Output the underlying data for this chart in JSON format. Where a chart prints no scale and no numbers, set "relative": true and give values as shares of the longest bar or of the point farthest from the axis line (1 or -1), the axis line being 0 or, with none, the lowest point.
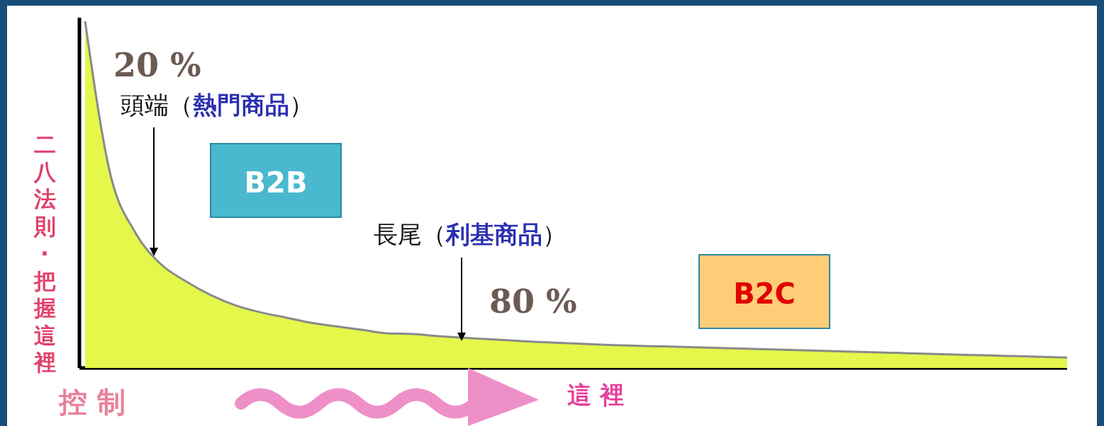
{
  "chart_data": {
    "type": "area",
    "relative": true,
    "ylabel": "二八法則‧把握這裡",
    "categories": [
      null,
      null,
      null,
      null,
      null,
      null,
      null,
      null,
      null,
      null,
      null,
      null,
      null,
      null,
      null,
      null,
      null,
      null,
      null,
      null,
      null,
      null,
      null,
      null,
      null,
      null,
      null,
      null,
      null,
      null,
      null,
      null,
      null,
      null,
      null,
      null,
      null,
      null,
      null,
      null
    ],
    "series": [
      {
        "color": "#e4f74a",
        "values": [
          1,
          0.56,
          0.39,
          0.3,
          0.25,
          0.21,
          0.18,
          0.16,
          0.145,
          0.13,
          0.12,
          0.11,
          0.1,
          0.098,
          0.092,
          0.087,
          0.083,
          0.079,
          0.075,
          0.072,
          0.069,
          0.066,
          0.064,
          0.062,
          0.06,
          0.058,
          0.056,
          0.054,
          0.052,
          0.05,
          0.048,
          0.046,
          0.044,
          0.042,
          0.04,
          0.038,
          0.036,
          0.034,
          0.032,
          0.03
        ]
      }
    ],
    "annotations": [
      "20 %",
      "頭端（熱門商品）",
      "B2B",
      "長尾（利基商品）",
      "80 %",
      "B2C",
      "控 制",
      "這 裡"
    ]
  }
}
